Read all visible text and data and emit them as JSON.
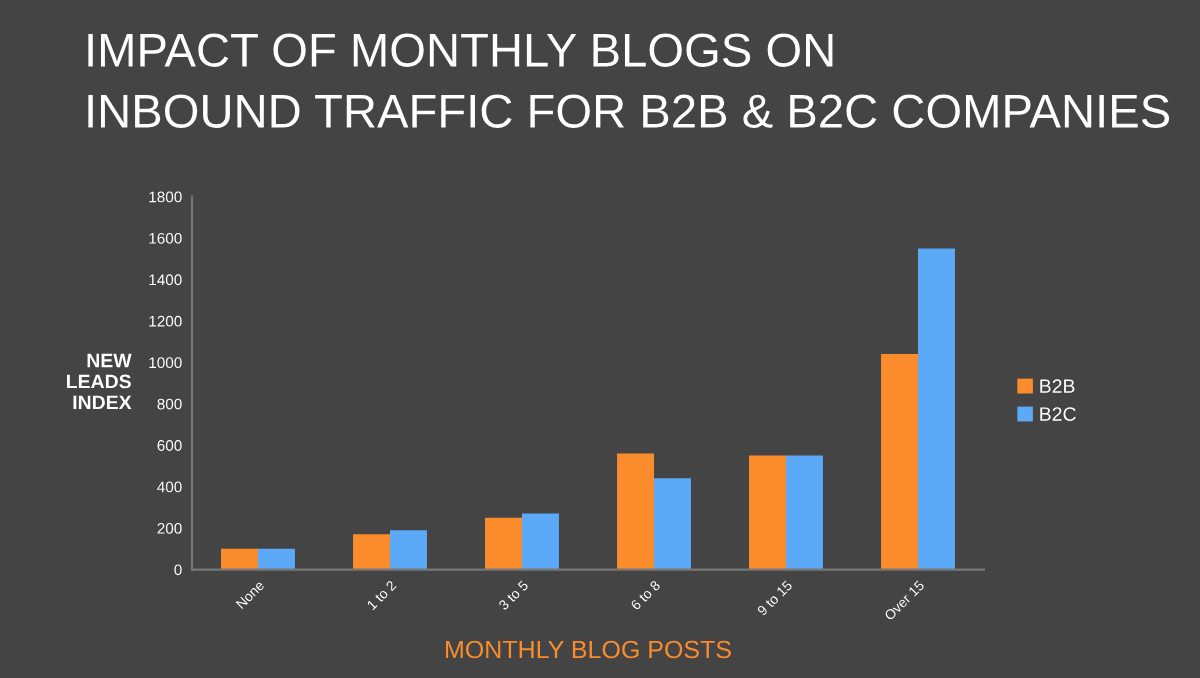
{
  "chart_data": {
    "type": "bar",
    "title": "IMPACT OF MONTHLY BLOGS ON",
    "subtitle": "INBOUND TRAFFIC FOR B2B & B2C COMPANIES",
    "xlabel": "MONTHLY BLOG POSTS",
    "ylabel": "NEW\nLEADS\nINDEX",
    "categories": [
      "None",
      "1 to 2",
      "3 to 5",
      "6 to 8",
      "9 to 15",
      "Over 15"
    ],
    "series": [
      {
        "name": "B2B",
        "color": "#fb8c2c",
        "values": [
          100,
          170,
          250,
          560,
          550,
          1040
        ]
      },
      {
        "name": "B2C",
        "color": "#5ba9f7",
        "values": [
          100,
          190,
          270,
          440,
          550,
          1550
        ]
      }
    ],
    "ylim": [
      0,
      1800
    ],
    "yticks": [
      0,
      200,
      400,
      600,
      800,
      1000,
      1200,
      1400,
      1600,
      1800
    ],
    "grid": false,
    "legend": "right"
  }
}
